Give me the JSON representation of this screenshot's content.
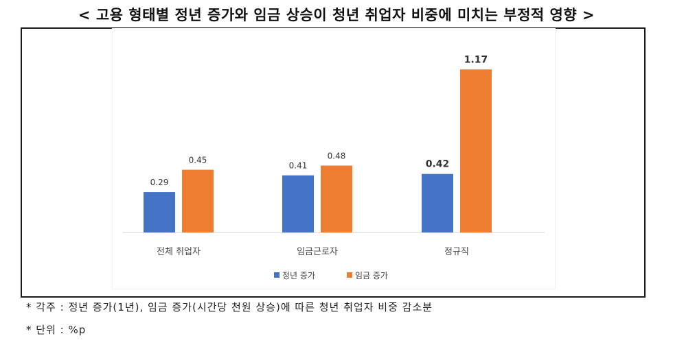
{
  "title": "< 고용 형태별 정년 증가와 임금 상승이 청년 취업자 비중에 미치는 부정적 영향 >",
  "notes": {
    "note1": "* 각주 : 정년 증가(1년), 임금 증가(시간당 천원 상승)에 따른 청년 취업자 비중 감소분",
    "note2": "* 단위 : %p"
  },
  "chart_data": {
    "type": "bar",
    "categories": [
      "전체 취업자",
      "임금근로자",
      "정규직"
    ],
    "series": [
      {
        "name": "정년 증가",
        "values": [
          0.29,
          0.41,
          0.42
        ],
        "color": "#4472C4"
      },
      {
        "name": "임금 증가",
        "values": [
          0.45,
          0.48,
          1.17
        ],
        "color": "#ED7D31"
      }
    ],
    "data_labels": [
      [
        "0.29",
        "0.41",
        "0.42"
      ],
      [
        "0.45",
        "0.48",
        "1.17"
      ]
    ],
    "ylim": [
      0,
      1.25
    ],
    "grid": false,
    "legend_position": "bottom"
  }
}
